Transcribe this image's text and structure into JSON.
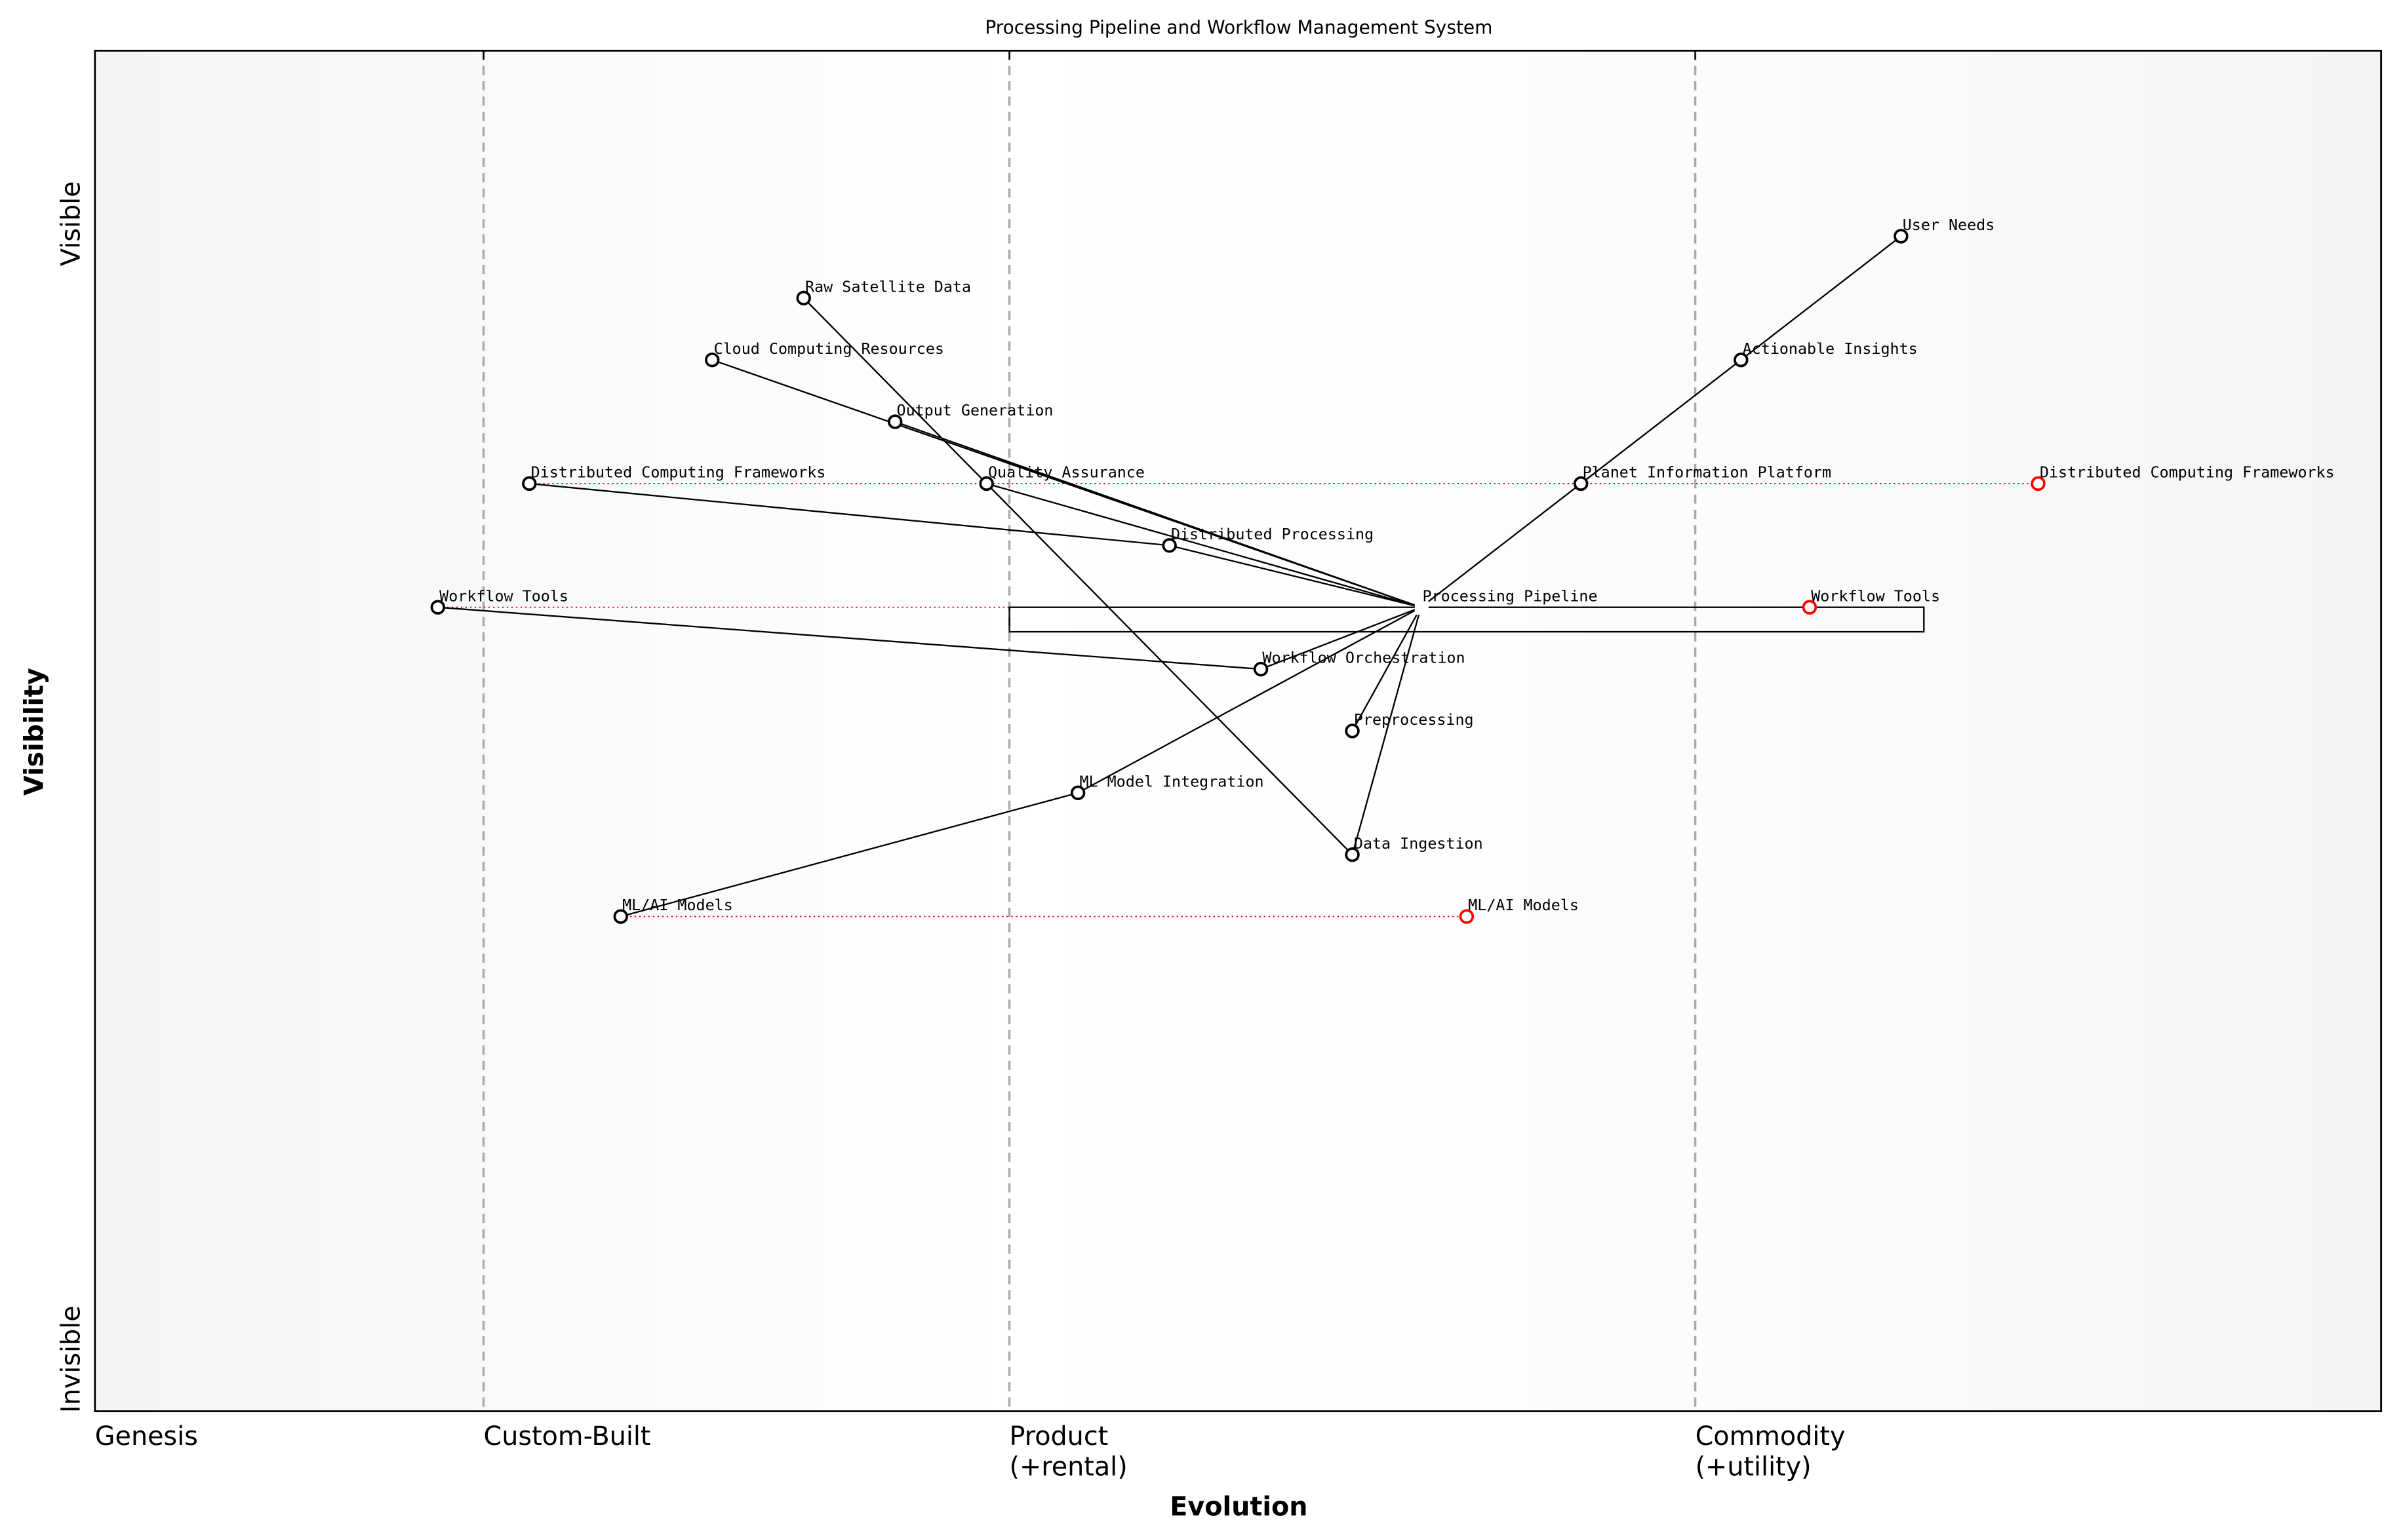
{
  "title": "Processing Pipeline and Workflow Management System",
  "xlabel": "Evolution",
  "ylabel": "Visibility",
  "y_top_label": "Visible",
  "y_bottom_label": "Invisible",
  "stages": [
    {
      "label": "Genesis",
      "x": 0.0
    },
    {
      "label": "Custom-Built",
      "x": 0.17
    },
    {
      "label": "Product\n(+rental)",
      "x": 0.4
    },
    {
      "label": "Commodity\n(+utility)",
      "x": 0.7
    }
  ],
  "chart_data": {
    "type": "scatter",
    "xlim": [
      0,
      1
    ],
    "ylim": [
      -0.05,
      1.05
    ],
    "components": [
      {
        "name": "User Needs",
        "x": 0.79,
        "y": 0.9
      },
      {
        "name": "Actionable Insights",
        "x": 0.72,
        "y": 0.8
      },
      {
        "name": "Planet Information Platform",
        "x": 0.65,
        "y": 0.7
      },
      {
        "name": "Processing Pipeline",
        "x": 0.58,
        "y": 0.6,
        "hidden_marker": true
      },
      {
        "name": "Raw Satellite Data",
        "x": 0.31,
        "y": 0.85
      },
      {
        "name": "Cloud Computing Resources",
        "x": 0.27,
        "y": 0.8
      },
      {
        "name": "Output Generation",
        "x": 0.35,
        "y": 0.75
      },
      {
        "name": "Distributed Computing Frameworks",
        "x": 0.19,
        "y": 0.7
      },
      {
        "name": "Quality Assurance",
        "x": 0.39,
        "y": 0.7
      },
      {
        "name": "Distributed Processing",
        "x": 0.47,
        "y": 0.65
      },
      {
        "name": "Workflow Tools",
        "x": 0.15,
        "y": 0.6
      },
      {
        "name": "Workflow Orchestration",
        "x": 0.51,
        "y": 0.55
      },
      {
        "name": "Preprocessing",
        "x": 0.55,
        "y": 0.5
      },
      {
        "name": "ML Model Integration",
        "x": 0.43,
        "y": 0.45
      },
      {
        "name": "Data Ingestion",
        "x": 0.55,
        "y": 0.4
      },
      {
        "name": "ML/AI Models",
        "x": 0.23,
        "y": 0.35
      }
    ],
    "links": [
      [
        "User Needs",
        "Actionable Insights"
      ],
      [
        "Actionable Insights",
        "Planet Information Platform"
      ],
      [
        "Planet Information Platform",
        "Processing Pipeline"
      ],
      [
        "Processing Pipeline",
        "Cloud Computing Resources"
      ],
      [
        "Processing Pipeline",
        "Output Generation"
      ],
      [
        "Processing Pipeline",
        "Quality Assurance"
      ],
      [
        "Processing Pipeline",
        "Distributed Processing"
      ],
      [
        "Processing Pipeline",
        "Workflow Orchestration"
      ],
      [
        "Processing Pipeline",
        "ML Model Integration"
      ],
      [
        "Processing Pipeline",
        "Preprocessing"
      ],
      [
        "Processing Pipeline",
        "Data Ingestion"
      ],
      [
        "Data Ingestion",
        "Raw Satellite Data"
      ],
      [
        "Distributed Processing",
        "Distributed Computing Frameworks"
      ],
      [
        "Workflow Orchestration",
        "Workflow Tools"
      ],
      [
        "ML Model Integration",
        "ML/AI Models"
      ]
    ],
    "evolutions": [
      {
        "name": "Distributed Computing Frameworks",
        "from_x": 0.19,
        "to_x": 0.85,
        "y": 0.7
      },
      {
        "name": "Workflow Tools",
        "from_x": 0.15,
        "to_x": 0.75,
        "y": 0.6
      },
      {
        "name": "ML/AI Models",
        "from_x": 0.23,
        "to_x": 0.6,
        "y": 0.35
      }
    ],
    "pipeline": {
      "name": "Processing Pipeline",
      "x_start": 0.4,
      "x_end": 0.8,
      "y": 0.6
    },
    "colors": {
      "component": "#000000",
      "evolved": "#ff0000",
      "stage_line": "#aaaaaa"
    }
  }
}
